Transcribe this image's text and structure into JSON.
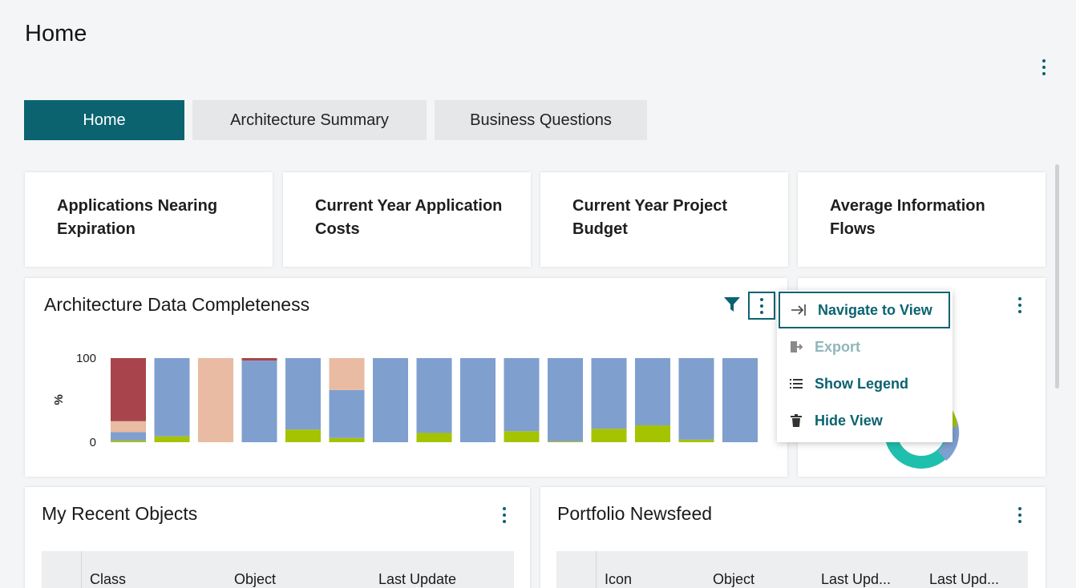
{
  "page": {
    "title": "Home"
  },
  "tabs": [
    {
      "label": "Home",
      "active": true
    },
    {
      "label": "Architecture Summary",
      "active": false
    },
    {
      "label": "Business Questions",
      "active": false
    }
  ],
  "kpis": [
    {
      "title": "Applications Nearing Expiration"
    },
    {
      "title": "Current Year Application Costs"
    },
    {
      "title": "Current Year Project Budget"
    },
    {
      "title": "Average Information Flows"
    }
  ],
  "chart_widget": {
    "title": "Architecture Data Completeness"
  },
  "chart_data": {
    "type": "bar",
    "stacked": true,
    "ylabel": "%",
    "ylim": [
      0,
      100
    ],
    "yticks": [
      0,
      100
    ],
    "categories": [
      "",
      "",
      "",
      "",
      "",
      "",
      "",
      "",
      "",
      "",
      "",
      "",
      "",
      "",
      ""
    ],
    "series": [
      {
        "color": "#a5c300",
        "values": [
          2,
          7,
          0,
          0,
          15,
          5,
          0,
          11,
          0,
          13,
          1,
          16,
          20,
          3,
          0
        ]
      },
      {
        "color": "#7f9fcf",
        "values": [
          10,
          93,
          0,
          97,
          85,
          57,
          100,
          89,
          100,
          87,
          99,
          84,
          80,
          97,
          100
        ]
      },
      {
        "color": "#e8bba2",
        "values": [
          13,
          0,
          100,
          0,
          0,
          38,
          0,
          0,
          0,
          0,
          0,
          0,
          0,
          0,
          0
        ]
      },
      {
        "color": "#a8454c",
        "values": [
          75,
          0,
          0,
          3,
          0,
          0,
          0,
          0,
          0,
          0,
          0,
          0,
          0,
          0,
          0
        ]
      }
    ]
  },
  "dropdown": {
    "items": [
      {
        "label": "Navigate to View",
        "icon": "navigate-icon",
        "selected": true
      },
      {
        "label": "Export",
        "icon": "export-icon",
        "disabled": true
      },
      {
        "label": "Show Legend",
        "icon": "list-icon"
      },
      {
        "label": "Hide View",
        "icon": "trash-icon"
      }
    ]
  },
  "recent_objects": {
    "title": "My Recent Objects",
    "columns": [
      "Class",
      "Object",
      "Last Update"
    ]
  },
  "newsfeed": {
    "title": "Portfolio Newsfeed",
    "columns": [
      "Icon",
      "Object",
      "Last Upd...",
      "Last Upd..."
    ]
  },
  "colors": {
    "accent": "#0b6370",
    "donut_teal": "#1fbfae",
    "donut_blue": "#7f9fcf",
    "donut_green": "#a5c300"
  }
}
